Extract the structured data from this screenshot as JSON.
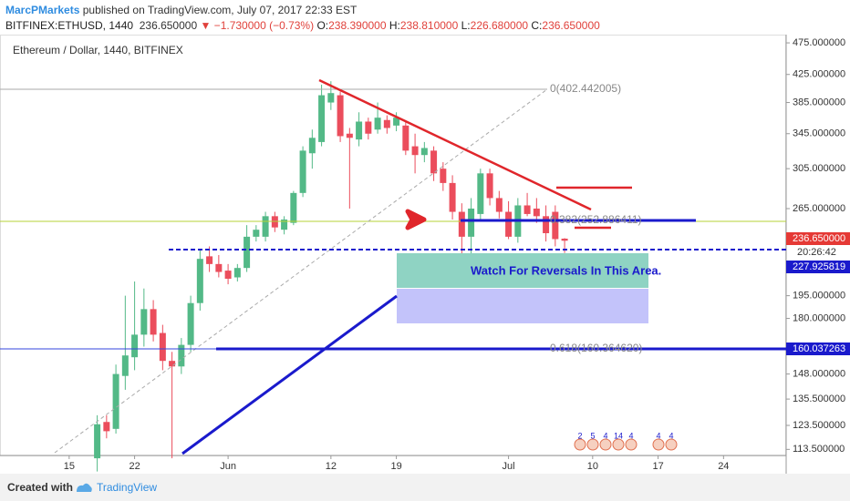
{
  "header": {
    "publisher": "MarcPMarkets",
    "published": "published on TradingView.com, July 07, 2017 22:33 EST",
    "symbol": "BITFINEX:ETHUSD, 1440",
    "price": "236.650000",
    "change": "▼ −1.730000 (−0.73%)",
    "ohlc": [
      {
        "label": "O:",
        "value": "238.390000"
      },
      {
        "label": "H:",
        "value": "238.810000"
      },
      {
        "label": "L:",
        "value": "226.680000"
      },
      {
        "label": "C:",
        "value": "236.650000"
      }
    ]
  },
  "chart_data": {
    "type": "candlestick",
    "title": "Ethereum / Dollar, 1440, BITFINEX",
    "log_scale": true,
    "up_color": "#53b987",
    "down_color": "#eb4d5c",
    "x": [
      3,
      4,
      5,
      6,
      7,
      8,
      9,
      10,
      11,
      12,
      13,
      14,
      15,
      16,
      17,
      18,
      19,
      20,
      21,
      22,
      23,
      24,
      25,
      26,
      27,
      28,
      29,
      30,
      31,
      32,
      33,
      34,
      35,
      36,
      37,
      38,
      39,
      40,
      41,
      42,
      43,
      44,
      45,
      46,
      47,
      48,
      49,
      50,
      51,
      52,
      53
    ],
    "open": [
      110,
      125,
      122,
      147,
      157,
      170,
      186,
      171,
      155,
      152,
      164,
      190,
      224,
      218,
      213,
      208,
      215,
      240,
      240,
      258,
      246,
      252,
      280,
      322,
      335,
      385,
      395,
      345,
      338,
      360,
      350,
      362,
      355,
      355,
      330,
      320,
      325,
      305,
      290,
      262,
      240,
      260,
      300,
      275,
      262,
      240,
      268,
      265,
      258,
      262,
      238.39
    ],
    "high": [
      128,
      128,
      153,
      195,
      205,
      200,
      192,
      176,
      160,
      168,
      195,
      230,
      232,
      225,
      218,
      218,
      250,
      250,
      262,
      262,
      258,
      282,
      330,
      350,
      410,
      415,
      400,
      352,
      372,
      365,
      385,
      368,
      372,
      360,
      345,
      335,
      330,
      312,
      298,
      270,
      275,
      305,
      305,
      282,
      272,
      275,
      280,
      275,
      268,
      268,
      238.81
    ],
    "low": [
      105,
      118,
      120,
      140,
      150,
      163,
      166,
      150,
      110,
      148,
      160,
      185,
      212,
      208,
      203,
      205,
      212,
      236,
      236,
      244,
      242,
      250,
      276,
      305,
      330,
      375,
      335,
      265,
      330,
      338,
      345,
      345,
      348,
      320,
      300,
      312,
      292,
      282,
      255,
      205,
      205,
      255,
      268,
      256,
      238,
      235,
      258,
      252,
      236,
      232,
      226.68
    ],
    "close": [
      124,
      121,
      148,
      158,
      170,
      186,
      170,
      155,
      152,
      164,
      190,
      222,
      218,
      212,
      207,
      215,
      240,
      246,
      258,
      248,
      255,
      280,
      325,
      340,
      395,
      398,
      342,
      340,
      360,
      345,
      365,
      352,
      365,
      325,
      320,
      328,
      300,
      290,
      262,
      240,
      265,
      300,
      275,
      262,
      240,
      268,
      260,
      258,
      243,
      238,
      236.65
    ],
    "xlim": [
      -7.4,
      76.7
    ],
    "xticks": [
      {
        "value": 0,
        "label": "15"
      },
      {
        "value": 7,
        "label": "22"
      },
      {
        "value": 17,
        "label": "Jun"
      },
      {
        "value": 28,
        "label": "12"
      },
      {
        "value": 35,
        "label": "19"
      },
      {
        "value": 47,
        "label": "Jul"
      },
      {
        "value": 56,
        "label": "10"
      },
      {
        "value": 63,
        "label": "17"
      },
      {
        "value": 70,
        "label": "24"
      }
    ],
    "ylim": [
      111.1,
      489
    ],
    "yticks": [
      {
        "value": 475,
        "label": "475.000000"
      },
      {
        "value": 425,
        "label": "425.000000"
      },
      {
        "value": 385,
        "label": "385.000000"
      },
      {
        "value": 345,
        "label": "345.000000"
      },
      {
        "value": 305,
        "label": "305.000000"
      },
      {
        "value": 265,
        "label": "265.000000"
      },
      {
        "value": 195,
        "label": "195.000000"
      },
      {
        "value": 180,
        "label": "180.000000"
      },
      {
        "value": 148,
        "label": "148.000000"
      },
      {
        "value": 135.5,
        "label": "135.500000"
      },
      {
        "value": 123.5,
        "label": "123.500000"
      },
      {
        "value": 113.5,
        "label": "113.500000"
      }
    ],
    "annotations": {
      "fib0": "0(402.442005)",
      "fib382": "0.382(252.886411)",
      "fib618": "0.618(160.364620)",
      "note": "Watch For Reversals In This Area.",
      "last_price": "236.650000",
      "countdown": "20:26:42",
      "level_a": "227.925819",
      "level_b": "160.037263"
    },
    "events": [
      "2",
      "5",
      "4",
      "14",
      "4",
      "4",
      "4"
    ]
  },
  "footer": {
    "created": "Created with",
    "brand": "TradingView"
  }
}
